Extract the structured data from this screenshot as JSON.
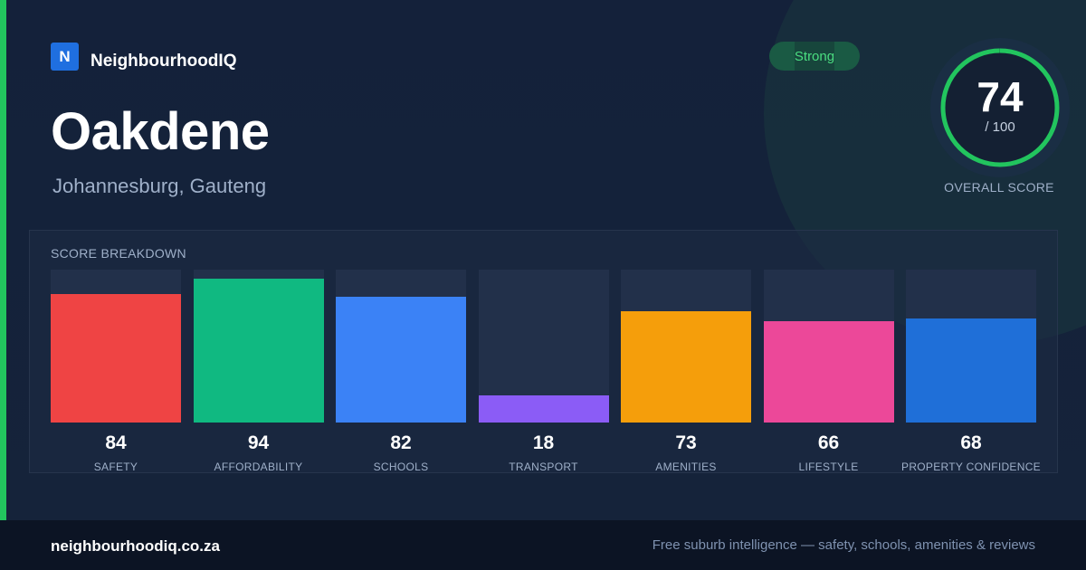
{
  "brand": {
    "logo_letter": "N",
    "name": "NeighbourhoodIQ"
  },
  "suburb": {
    "name": "Oakdene",
    "location": "Johannesburg, Gauteng"
  },
  "rating_badge": "Strong",
  "overall": {
    "score": "74",
    "max_label": "/ 100",
    "caption": "OVERALL SCORE",
    "score_fraction": 0.74,
    "ring_color": "#22c55e"
  },
  "chart_data": {
    "type": "bar",
    "title": "SCORE BREAKDOWN",
    "ylim": [
      0,
      100
    ],
    "categories": [
      "SAFETY",
      "AFFORDABILITY",
      "SCHOOLS",
      "TRANSPORT",
      "AMENITIES",
      "LIFESTYLE",
      "PROPERTY CONFIDENCE"
    ],
    "values": [
      84,
      94,
      82,
      18,
      73,
      66,
      68
    ],
    "colors": [
      "#ef4444",
      "#10b981",
      "#3b82f6",
      "#8b5cf6",
      "#f59e0b",
      "#ec4899",
      "#1f6fd8"
    ]
  },
  "footer": {
    "domain": "neighbourhoodiq.co.za",
    "tagline": "Free suburb intelligence — safety, schools, amenities & reviews"
  }
}
